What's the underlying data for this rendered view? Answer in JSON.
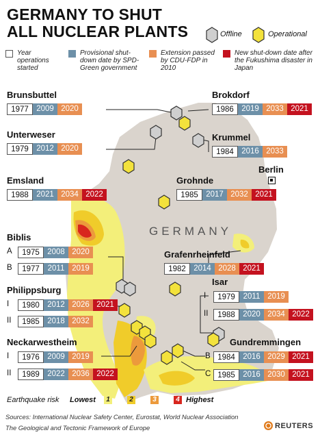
{
  "title": [
    "GERMANY TO SHUT",
    "ALL NUCLEAR PLANTS"
  ],
  "marker_legend": {
    "offline": "Offline",
    "operational": "Operational"
  },
  "legend": [
    {
      "label": "Year operations started",
      "color": "#ffffff"
    },
    {
      "label": "Provisional shut-down date by SPD-Green government",
      "color": "#6d90a8"
    },
    {
      "label": "Extension passed by CDU-FDP in 2010",
      "color": "#e88f52"
    },
    {
      "label": "New shut-down date after the Fukushima disaster in Japan",
      "color": "#c4121f"
    }
  ],
  "map": {
    "country_label": "GERMANY",
    "capital": "Berlin"
  },
  "plants": {
    "brunsbuttel": {
      "name": "Brunsbuttel",
      "dates": [
        "1977",
        "2009",
        "2020"
      ]
    },
    "brokdorf": {
      "name": "Brokdorf",
      "dates": [
        "1986",
        "2019",
        "2033",
        "2021"
      ]
    },
    "unterweser": {
      "name": "Unterweser",
      "dates": [
        "1979",
        "2012",
        "2020"
      ]
    },
    "krummel": {
      "name": "Krummel",
      "dates": [
        "1984",
        "2016",
        "2033"
      ]
    },
    "emsland": {
      "name": "Emsland",
      "dates": [
        "1988",
        "2021",
        "2034",
        "2022"
      ]
    },
    "grohnde": {
      "name": "Grohnde",
      "dates": [
        "1985",
        "2017",
        "2032",
        "2021"
      ]
    },
    "biblis": {
      "name": "Biblis",
      "units": [
        {
          "label": "A",
          "dates": [
            "1975",
            "2008",
            "2020"
          ]
        },
        {
          "label": "B",
          "dates": [
            "1977",
            "2011",
            "2019"
          ]
        }
      ]
    },
    "grafenrheinfeld": {
      "name": "Grafenrheinfeld",
      "dates": [
        "1982",
        "2014",
        "2028",
        "2021"
      ]
    },
    "philippsburg": {
      "name": "Philippsburg",
      "units": [
        {
          "label": "I",
          "dates": [
            "1980",
            "2012",
            "2026",
            "2021"
          ]
        },
        {
          "label": "II",
          "dates": [
            "1985",
            "2018",
            "2032"
          ]
        }
      ]
    },
    "isar": {
      "name": "Isar",
      "units": [
        {
          "label": "I",
          "dates": [
            "1979",
            "2011",
            "2019"
          ]
        },
        {
          "label": "II",
          "dates": [
            "1988",
            "2020",
            "2034",
            "2022"
          ]
        }
      ]
    },
    "neckarwestheim": {
      "name": "Neckarwestheim",
      "units": [
        {
          "label": "I",
          "dates": [
            "1976",
            "2009",
            "2019"
          ]
        },
        {
          "label": "II",
          "dates": [
            "1989",
            "2022",
            "2036",
            "2022"
          ]
        }
      ]
    },
    "gundremmingen": {
      "name": "Gundremmingen",
      "units": [
        {
          "label": "B",
          "dates": [
            "1984",
            "2016",
            "2029",
            "2021"
          ]
        },
        {
          "label": "C",
          "dates": [
            "1985",
            "2016",
            "2030",
            "2021"
          ]
        }
      ]
    }
  },
  "earthquake": {
    "label": "Earthquake risk",
    "lowest": "Lowest",
    "highest": "Highest",
    "levels": [
      {
        "n": "1",
        "color": "#f3ef7a"
      },
      {
        "n": "2",
        "color": "#f0cc2a"
      },
      {
        "n": "3",
        "color": "#ec9a3c"
      },
      {
        "n": "4",
        "color": "#d8261e"
      }
    ]
  },
  "sources": [
    "Sources: International Nuclear Safety Center, Eurostat, World Nuclear Association",
    "The Geological and Tectonic Framework of Europe"
  ],
  "logo": "REUTERS"
}
